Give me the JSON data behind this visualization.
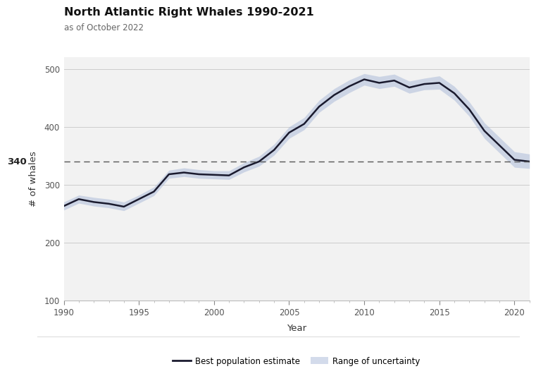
{
  "title": "North Atlantic Right Whales 1990-2021",
  "subtitle": "as of October 2022",
  "xlabel": "Year",
  "ylabel": "# of whales",
  "xlim": [
    1990,
    2021
  ],
  "ylim": [
    100,
    520
  ],
  "yticks": [
    100,
    200,
    300,
    400,
    500
  ],
  "xticks": [
    1990,
    1995,
    2000,
    2005,
    2010,
    2015,
    2020
  ],
  "dashed_line_y": 340,
  "dashed_label": "340",
  "line_color": "#1a1a2e",
  "fill_color": "#a8b8d8",
  "fill_alpha": 0.5,
  "background_color": "#f2f2f2",
  "years": [
    1990,
    1991,
    1992,
    1993,
    1994,
    1995,
    1996,
    1997,
    1998,
    1999,
    2000,
    2001,
    2002,
    2003,
    2004,
    2005,
    2006,
    2007,
    2008,
    2009,
    2010,
    2011,
    2012,
    2013,
    2014,
    2015,
    2016,
    2017,
    2018,
    2019,
    2020,
    2021
  ],
  "best_estimate": [
    263,
    275,
    270,
    267,
    262,
    275,
    288,
    318,
    321,
    318,
    317,
    316,
    330,
    340,
    360,
    390,
    405,
    435,
    455,
    470,
    482,
    476,
    480,
    468,
    474,
    476,
    458,
    430,
    393,
    368,
    343,
    340
  ],
  "upper_bound": [
    270,
    282,
    278,
    275,
    270,
    282,
    296,
    325,
    329,
    326,
    324,
    324,
    338,
    349,
    370,
    400,
    416,
    446,
    466,
    481,
    492,
    487,
    491,
    479,
    484,
    488,
    470,
    443,
    407,
    382,
    357,
    353
  ],
  "lower_bound": [
    256,
    268,
    263,
    260,
    255,
    268,
    281,
    311,
    314,
    311,
    310,
    309,
    322,
    332,
    351,
    380,
    395,
    425,
    444,
    459,
    472,
    466,
    470,
    458,
    464,
    465,
    446,
    418,
    380,
    355,
    330,
    328
  ]
}
